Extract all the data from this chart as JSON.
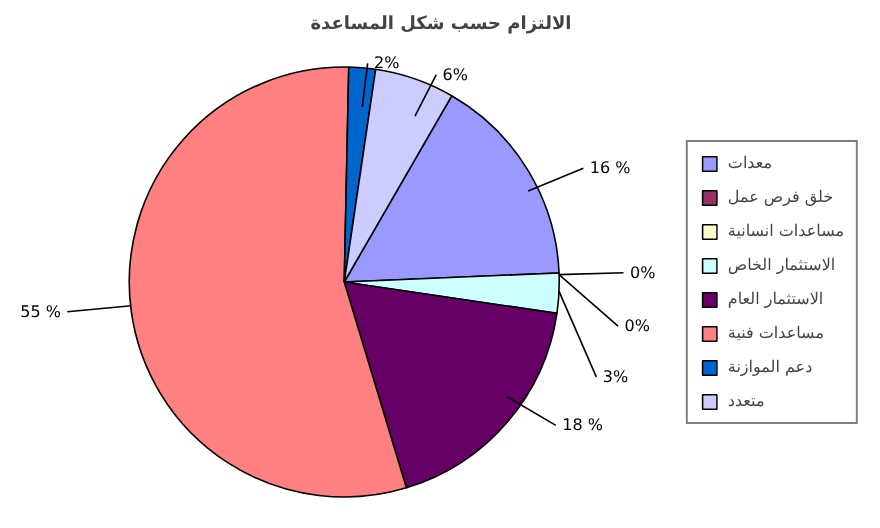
{
  "chart_data": {
    "type": "pie",
    "title": "الالتزام حسب شكل المساعدة",
    "categories": [
      "معدات",
      "خلق فرص عمل",
      "مساعدات انسانية",
      "الاستثمار الخاص",
      "الاستثمار العام",
      "مساعدات فنية",
      "دعم الموازنة",
      "متعدد"
    ],
    "values": [
      16,
      0,
      0,
      3,
      18,
      55,
      2,
      6
    ],
    "colors": [
      "#9999ff",
      "#993366",
      "#ffffcc",
      "#ccffff",
      "#660066",
      "#ff8080",
      "#0066cc",
      "#ccccff"
    ],
    "value_labels": [
      "16 %",
      "0%",
      "0%",
      "3%",
      "18 %",
      "55 %",
      "2%",
      "6%"
    ],
    "legend": "right"
  }
}
